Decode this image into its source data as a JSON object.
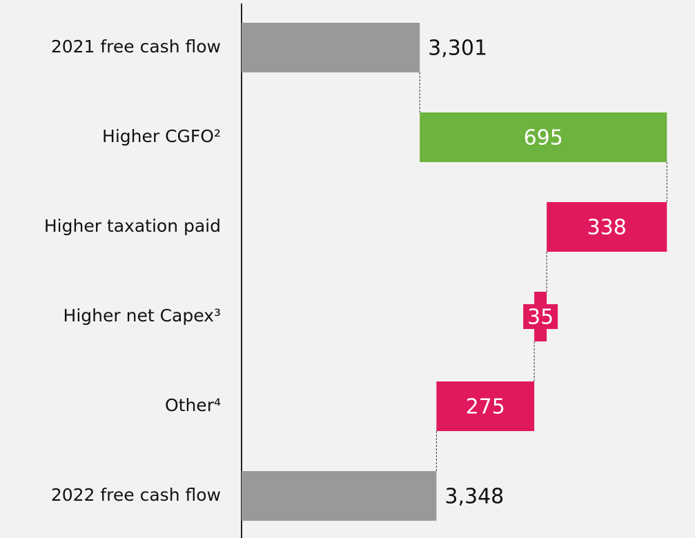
{
  "chart_data": {
    "type": "waterfall",
    "categories": [
      "2021 free cash flow",
      "Higher CGFO²",
      "Higher taxation paid",
      "Higher net Capex³",
      "Other⁴",
      "2022 free cash flow"
    ],
    "values": [
      3301,
      695,
      -338,
      -35,
      -275,
      3348
    ],
    "value_labels": [
      "3,301",
      "695",
      "338",
      "35",
      "275",
      "3,348"
    ],
    "colors": [
      "#999999",
      "#6db33f",
      "#e0195f",
      "#e0195f",
      "#e0195f",
      "#999999"
    ],
    "xlim": [
      2800,
      4075
    ]
  }
}
